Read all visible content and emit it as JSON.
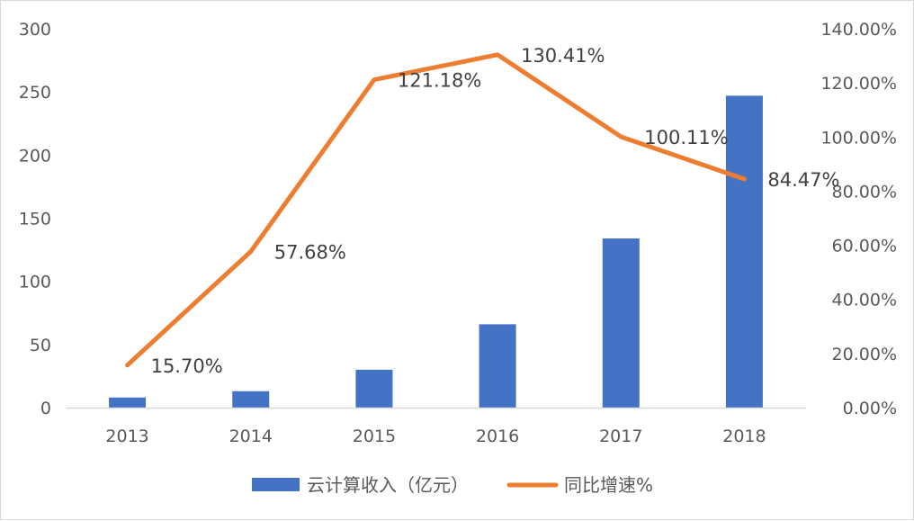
{
  "chart_data": {
    "type": "bar",
    "categories": [
      "2013",
      "2014",
      "2015",
      "2016",
      "2017",
      "2018"
    ],
    "series": [
      {
        "name": "云计算收入（亿元）",
        "type": "bar",
        "axis": "left",
        "values": [
          8,
          13,
          30,
          66,
          134,
          247
        ],
        "color": "#4472C4"
      },
      {
        "name": "同比增速%",
        "type": "line",
        "axis": "right",
        "values": [
          15.7,
          57.68,
          121.18,
          130.41,
          100.11,
          84.47
        ],
        "labels": [
          "15.70%",
          "57.68%",
          "121.18%",
          "130.41%",
          "100.11%",
          "84.47%"
        ],
        "color": "#ED7D31"
      }
    ],
    "y_left": {
      "ylim": [
        0,
        300
      ],
      "ticks": [
        "0",
        "50",
        "100",
        "150",
        "200",
        "250",
        "300"
      ]
    },
    "y_right": {
      "ylim": [
        0,
        140
      ],
      "ticks": [
        "0.00%",
        "20.00%",
        "40.00%",
        "60.00%",
        "80.00%",
        "100.00%",
        "120.00%",
        "140.00%"
      ]
    },
    "title": "",
    "xlabel": "",
    "ylabel": "",
    "grid": false,
    "legend": "bottom"
  }
}
